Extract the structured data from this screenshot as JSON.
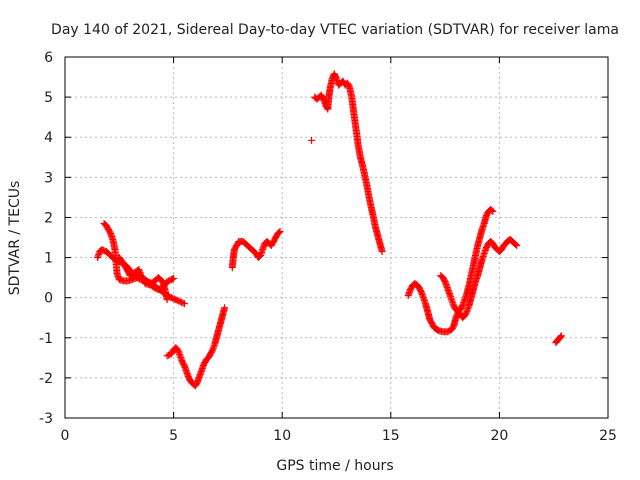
{
  "chart_data": {
    "type": "scatter",
    "title": "Day 140 of 2021, Sidereal Day-to-day VTEC variation (SDTVAR) for receiver lama",
    "xlabel": "GPS time / hours",
    "ylabel": "SDTVAR / TECUs",
    "xlim": [
      0,
      25
    ],
    "ylim": [
      -3,
      6
    ],
    "x_ticks": [
      "0",
      "5",
      "10",
      "15",
      "20",
      "25"
    ],
    "y_ticks": [
      "-3",
      "-2",
      "-1",
      "0",
      "1",
      "2",
      "3",
      "4",
      "5",
      "6"
    ],
    "grid": true,
    "marker": "+",
    "series": [
      {
        "name": "SDTVAR",
        "color": "#ff0000",
        "segments": [
          [
            [
              1.5,
              1.0
            ],
            [
              1.6,
              1.15
            ],
            [
              1.7,
              1.2
            ],
            [
              1.9,
              1.15
            ],
            [
              2.1,
              1.05
            ],
            [
              2.3,
              0.95
            ],
            [
              2.5,
              0.9
            ],
            [
              2.7,
              0.85
            ],
            [
              2.9,
              0.75
            ],
            [
              3.1,
              0.6
            ],
            [
              3.3,
              0.5
            ],
            [
              3.5,
              0.45
            ],
            [
              3.7,
              0.42
            ],
            [
              3.9,
              0.38
            ],
            [
              4.1,
              0.3
            ],
            [
              4.3,
              0.22
            ],
            [
              4.5,
              0.15
            ],
            [
              4.7,
              0.05
            ],
            [
              4.9,
              0.0
            ],
            [
              5.1,
              -0.05
            ],
            [
              5.3,
              -0.1
            ],
            [
              5.5,
              -0.15
            ]
          ],
          [
            [
              1.8,
              1.85
            ],
            [
              1.9,
              1.8
            ],
            [
              2.0,
              1.7
            ],
            [
              2.1,
              1.6
            ],
            [
              2.2,
              1.45
            ],
            [
              2.3,
              1.2
            ],
            [
              2.35,
              0.9
            ],
            [
              2.4,
              0.6
            ],
            [
              2.5,
              0.45
            ],
            [
              2.7,
              0.42
            ],
            [
              2.9,
              0.42
            ],
            [
              3.1,
              0.45
            ],
            [
              3.3,
              0.5
            ],
            [
              3.5,
              0.5
            ],
            [
              3.7,
              0.45
            ],
            [
              3.9,
              0.35
            ],
            [
              4.1,
              0.25
            ],
            [
              4.3,
              0.2
            ],
            [
              4.5,
              0.25
            ],
            [
              4.7,
              0.4
            ],
            [
              4.9,
              0.45
            ],
            [
              5.0,
              0.48
            ]
          ],
          [
            [
              2.5,
              1.0
            ],
            [
              2.7,
              0.85
            ],
            [
              2.9,
              0.65
            ],
            [
              3.0,
              0.55
            ],
            [
              3.2,
              0.62
            ],
            [
              3.4,
              0.7
            ],
            [
              3.5,
              0.55
            ],
            [
              3.7,
              0.35
            ],
            [
              3.9,
              0.32
            ],
            [
              4.1,
              0.4
            ],
            [
              4.3,
              0.5
            ],
            [
              4.5,
              0.4
            ],
            [
              4.6,
              0.2
            ],
            [
              4.7,
              -0.05
            ]
          ],
          [
            [
              4.7,
              -1.45
            ],
            [
              4.9,
              -1.4
            ],
            [
              5.0,
              -1.3
            ],
            [
              5.1,
              -1.25
            ],
            [
              5.2,
              -1.3
            ],
            [
              5.3,
              -1.45
            ],
            [
              5.4,
              -1.6
            ],
            [
              5.5,
              -1.7
            ],
            [
              5.6,
              -1.85
            ],
            [
              5.7,
              -2.0
            ],
            [
              5.8,
              -2.1
            ],
            [
              5.9,
              -2.15
            ],
            [
              6.0,
              -2.2
            ],
            [
              6.1,
              -2.1
            ],
            [
              6.2,
              -1.95
            ],
            [
              6.3,
              -1.8
            ],
            [
              6.4,
              -1.65
            ],
            [
              6.5,
              -1.55
            ],
            [
              6.6,
              -1.5
            ],
            [
              6.7,
              -1.4
            ],
            [
              6.8,
              -1.3
            ],
            [
              6.9,
              -1.15
            ],
            [
              7.0,
              -0.95
            ],
            [
              7.1,
              -0.75
            ],
            [
              7.2,
              -0.55
            ],
            [
              7.3,
              -0.35
            ],
            [
              7.35,
              -0.25
            ]
          ],
          [
            [
              7.7,
              0.75
            ],
            [
              7.75,
              1.0
            ],
            [
              7.8,
              1.2
            ],
            [
              7.9,
              1.3
            ],
            [
              8.0,
              1.4
            ],
            [
              8.2,
              1.4
            ],
            [
              8.4,
              1.3
            ],
            [
              8.6,
              1.2
            ],
            [
              8.8,
              1.1
            ],
            [
              8.9,
              1.0
            ],
            [
              9.0,
              1.05
            ],
            [
              9.1,
              1.2
            ],
            [
              9.2,
              1.35
            ],
            [
              9.3,
              1.4
            ],
            [
              9.4,
              1.35
            ],
            [
              9.5,
              1.3
            ],
            [
              9.6,
              1.4
            ],
            [
              9.7,
              1.5
            ],
            [
              9.8,
              1.6
            ],
            [
              9.9,
              1.65
            ]
          ],
          [
            [
              11.35,
              3.92
            ]
          ],
          [
            [
              11.5,
              5.0
            ],
            [
              11.6,
              4.95
            ],
            [
              11.7,
              5.0
            ],
            [
              11.8,
              5.05
            ],
            [
              11.9,
              4.95
            ],
            [
              12.0,
              4.8
            ],
            [
              12.1,
              4.7
            ],
            [
              12.15,
              5.0
            ],
            [
              12.2,
              5.2
            ],
            [
              12.3,
              5.45
            ],
            [
              12.4,
              5.58
            ],
            [
              12.5,
              5.45
            ],
            [
              12.6,
              5.3
            ],
            [
              12.7,
              5.35
            ],
            [
              12.8,
              5.4
            ],
            [
              12.9,
              5.3
            ],
            [
              13.0,
              5.35
            ],
            [
              13.1,
              5.25
            ],
            [
              13.2,
              5.0
            ],
            [
              13.3,
              4.6
            ],
            [
              13.4,
              4.2
            ],
            [
              13.5,
              3.8
            ],
            [
              13.6,
              3.5
            ],
            [
              13.7,
              3.3
            ],
            [
              13.8,
              3.05
            ],
            [
              13.9,
              2.8
            ],
            [
              14.0,
              2.5
            ],
            [
              14.1,
              2.25
            ],
            [
              14.2,
              2.0
            ],
            [
              14.3,
              1.75
            ],
            [
              14.4,
              1.55
            ],
            [
              14.5,
              1.35
            ],
            [
              14.6,
              1.15
            ]
          ],
          [
            [
              15.8,
              0.05
            ],
            [
              15.9,
              0.2
            ],
            [
              16.0,
              0.3
            ],
            [
              16.1,
              0.35
            ],
            [
              16.2,
              0.32
            ],
            [
              16.3,
              0.25
            ],
            [
              16.4,
              0.15
            ],
            [
              16.5,
              0.0
            ],
            [
              16.6,
              -0.15
            ],
            [
              16.7,
              -0.35
            ],
            [
              16.8,
              -0.55
            ],
            [
              16.9,
              -0.65
            ],
            [
              17.0,
              -0.75
            ],
            [
              17.2,
              -0.82
            ],
            [
              17.4,
              -0.85
            ],
            [
              17.6,
              -0.85
            ],
            [
              17.8,
              -0.8
            ],
            [
              17.9,
              -0.7
            ],
            [
              18.0,
              -0.5
            ],
            [
              18.1,
              -0.35
            ],
            [
              18.2,
              -0.4
            ],
            [
              18.3,
              -0.5
            ],
            [
              18.4,
              -0.45
            ],
            [
              18.5,
              -0.35
            ],
            [
              18.6,
              -0.2
            ],
            [
              18.7,
              0.0
            ],
            [
              18.8,
              0.2
            ],
            [
              18.9,
              0.4
            ],
            [
              19.0,
              0.55
            ],
            [
              19.1,
              0.75
            ],
            [
              19.2,
              0.95
            ],
            [
              19.3,
              1.1
            ],
            [
              19.4,
              1.25
            ],
            [
              19.5,
              1.35
            ],
            [
              19.6,
              1.4
            ],
            [
              19.7,
              1.35
            ],
            [
              19.8,
              1.25
            ],
            [
              19.9,
              1.2
            ],
            [
              20.0,
              1.15
            ],
            [
              20.1,
              1.2
            ],
            [
              20.2,
              1.3
            ],
            [
              20.3,
              1.35
            ],
            [
              20.4,
              1.42
            ],
            [
              20.5,
              1.45
            ],
            [
              20.6,
              1.4
            ],
            [
              20.7,
              1.35
            ],
            [
              20.8,
              1.3
            ]
          ],
          [
            [
              17.3,
              0.55
            ],
            [
              17.4,
              0.5
            ],
            [
              17.5,
              0.4
            ],
            [
              17.6,
              0.25
            ],
            [
              17.7,
              0.1
            ],
            [
              17.8,
              -0.05
            ],
            [
              17.9,
              -0.2
            ],
            [
              18.0,
              -0.3
            ],
            [
              18.1,
              -0.35
            ],
            [
              18.2,
              -0.3
            ],
            [
              18.3,
              -0.2
            ],
            [
              18.4,
              -0.05
            ],
            [
              18.5,
              0.1
            ],
            [
              18.6,
              0.3
            ],
            [
              18.7,
              0.55
            ],
            [
              18.8,
              0.8
            ],
            [
              18.9,
              1.05
            ],
            [
              19.0,
              1.3
            ],
            [
              19.1,
              1.5
            ],
            [
              19.2,
              1.7
            ],
            [
              19.3,
              1.85
            ],
            [
              19.4,
              2.05
            ],
            [
              19.5,
              2.15
            ],
            [
              19.6,
              2.2
            ],
            [
              19.7,
              2.15
            ]
          ],
          [
            [
              22.6,
              -1.12
            ],
            [
              22.7,
              -1.05
            ],
            [
              22.8,
              -1.0
            ],
            [
              22.85,
              -0.95
            ]
          ]
        ]
      }
    ]
  }
}
